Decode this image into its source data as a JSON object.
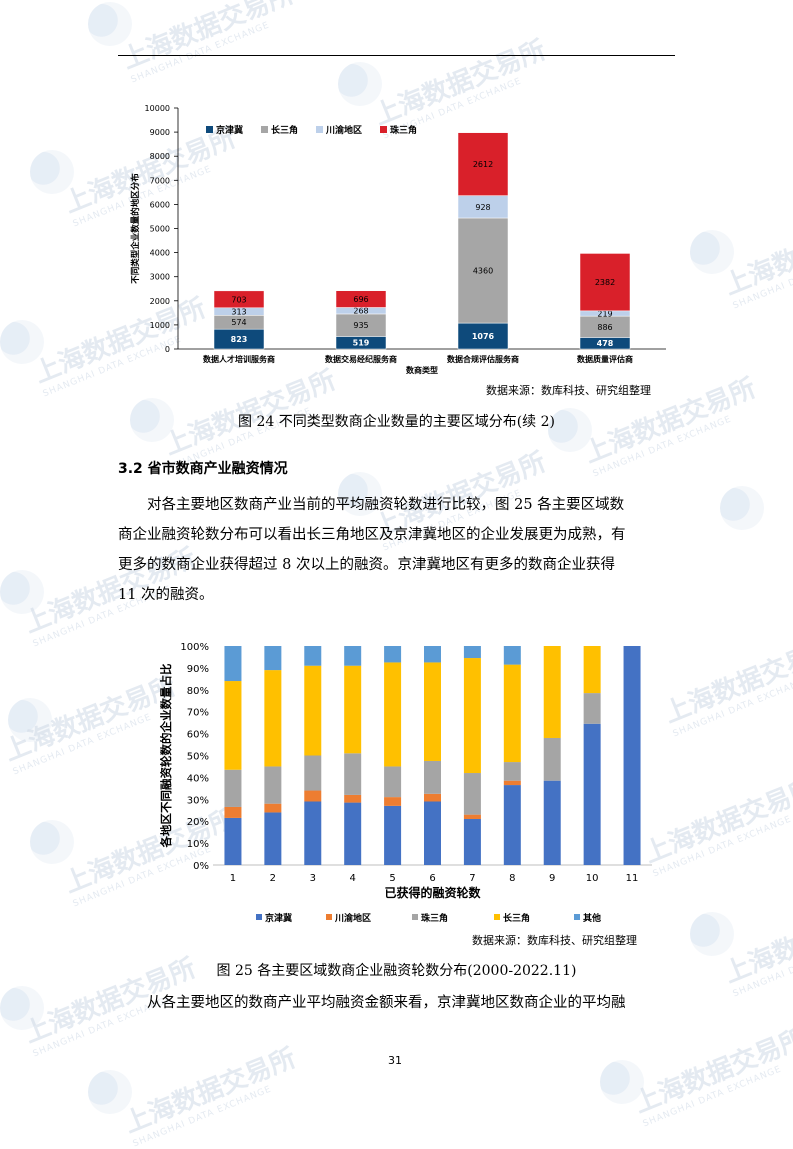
{
  "watermark": {
    "text_cn": "上海数据交易所",
    "text_en": "SHANGHAI DATA EXCHANGE"
  },
  "chart1": {
    "source": "数据来源：数库科技、研究组整理",
    "caption": "图 24  不同类型数商企业数量的主要区域分布(续 2)"
  },
  "section": {
    "heading": "3.2  省市数商产业融资情况",
    "paragraph_lines": [
      "对各主要地区数商产业当前的平均融资轮数进行比较，图 25  各主要区域数",
      "商企业融资轮数分布可以看出长三角地区及京津冀地区的企业发展更为成熟，有",
      "更多的数商企业获得超过  8  次以上的融资。京津冀地区有更多的数商企业获得",
      "11 次的融资。"
    ]
  },
  "chart2": {
    "source": "数据来源：数库科技、研究组整理",
    "caption": "图 25  各主要区域数商企业融资轮数分布(2000-2022.11)"
  },
  "closing_line": "从各主要地区的数商产业平均融资金额来看，京津冀地区数商企业的平均融",
  "page_number": "31",
  "chart_data": [
    {
      "type": "bar",
      "stacked": true,
      "title": "",
      "xlabel": "数商类型",
      "ylabel": "不同类型企业数量的地区分布",
      "ylim": [
        0,
        10000
      ],
      "yticks": [
        0,
        1000,
        2000,
        3000,
        4000,
        5000,
        6000,
        7000,
        8000,
        9000,
        10000
      ],
      "legend_position": "top-left",
      "grid": false,
      "categories": [
        "数据人才培训服务商",
        "数据交易经纪服务商",
        "数据合规评估服务商",
        "数据质量评估商"
      ],
      "series": [
        {
          "name": "京津冀",
          "color": "#0e4a7b",
          "label_color": "#ffffff",
          "values": [
            823,
            519,
            1076,
            478
          ]
        },
        {
          "name": "长三角",
          "color": "#a6a6a6",
          "label_color": "#000000",
          "values": [
            574,
            935,
            4360,
            886
          ]
        },
        {
          "name": "川渝地区",
          "color": "#bdd0ea",
          "label_color": "#000000",
          "values": [
            313,
            268,
            928,
            219
          ]
        },
        {
          "name": "珠三角",
          "color": "#d9202a",
          "label_color": "#000000",
          "values": [
            703,
            696,
            2612,
            2382
          ]
        }
      ]
    },
    {
      "type": "bar",
      "stacked": true,
      "percent": true,
      "title": "",
      "xlabel": "已获得的融资轮数",
      "ylabel": "各地区不同融资轮数的企业数量占比",
      "ylim": [
        0,
        100
      ],
      "ytick_labels": [
        "0%",
        "10%",
        "20%",
        "30%",
        "40%",
        "50%",
        "60%",
        "70%",
        "80%",
        "90%",
        "100%"
      ],
      "legend_position": "bottom",
      "grid": false,
      "categories": [
        "1",
        "2",
        "3",
        "4",
        "5",
        "6",
        "7",
        "8",
        "9",
        "10",
        "11"
      ],
      "series": [
        {
          "name": "京津冀",
          "color": "#4472c4",
          "values": [
            21.5,
            24,
            29,
            28.5,
            27,
            29,
            21,
            36.5,
            38.5,
            64.5,
            100
          ]
        },
        {
          "name": "川渝地区",
          "color": "#ed7d31",
          "values": [
            5,
            4,
            5,
            3.5,
            4,
            3.5,
            2,
            2,
            0,
            0,
            0
          ]
        },
        {
          "name": "珠三角",
          "color": "#a5a5a5",
          "values": [
            17,
            17,
            16,
            19,
            14,
            15,
            19,
            8.5,
            19.5,
            14,
            0
          ]
        },
        {
          "name": "长三角",
          "color": "#ffc000",
          "values": [
            40.5,
            44,
            41,
            40,
            47.5,
            45,
            52.5,
            44.5,
            42,
            21.5,
            0
          ]
        },
        {
          "name": "其他",
          "color": "#5b9bd5",
          "values": [
            16,
            11,
            9,
            9,
            7.5,
            7.5,
            5.5,
            8.5,
            0,
            0,
            0
          ]
        }
      ]
    }
  ]
}
